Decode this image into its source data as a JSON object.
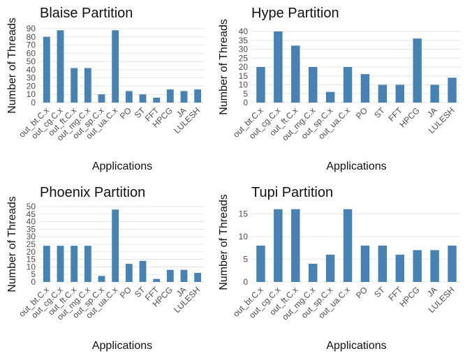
{
  "chart_data": [
    {
      "type": "bar",
      "title": "Blaise Partition",
      "xlabel": "Applications",
      "ylabel": "Number of Threads",
      "categories": [
        "out_bt.C.x",
        "out_cg.C.x",
        "out_ft.C.x",
        "out_mg.C.x",
        "out_sp.C.x",
        "out_ua.C.x",
        "PO",
        "ST",
        "FFT",
        "HPCG",
        "JA",
        "LULESH"
      ],
      "values": [
        80,
        88,
        42,
        42,
        10,
        88,
        14,
        10,
        6,
        16,
        14,
        16
      ],
      "yticks": [
        0,
        10,
        20,
        30,
        40,
        50,
        60,
        70,
        80,
        90
      ],
      "ylim": [
        0,
        90
      ],
      "grid": true,
      "bar_color": "#4682b4"
    },
    {
      "type": "bar",
      "title": "Hype Partition",
      "xlabel": "Applications",
      "ylabel": "Number of Threads",
      "categories": [
        "out_bt.C.x",
        "out_cg.C.x",
        "out_ft.C.x",
        "out_mg.C.x",
        "out_sp.C.x",
        "out_ua.C.x",
        "PO",
        "ST",
        "FFT",
        "HPCG",
        "JA",
        "LULESH"
      ],
      "values": [
        20,
        40,
        32,
        20,
        6,
        20,
        16,
        10,
        10,
        36,
        10,
        14
      ],
      "yticks": [
        0,
        5,
        10,
        15,
        20,
        25,
        30,
        35,
        40
      ],
      "ylim": [
        0,
        40
      ],
      "grid": true,
      "bar_color": "#4682b4"
    },
    {
      "type": "bar",
      "title": "Phoenix Partition",
      "xlabel": "Applications",
      "ylabel": "Number of Threads",
      "categories": [
        "out_bt.C.x",
        "out_cg.C.x",
        "out_ft.C.x",
        "out_mg.C.x",
        "out_sp.C.x",
        "out_ua.C.x",
        "PO",
        "ST",
        "FFT",
        "HPCG",
        "JA",
        "LULESH"
      ],
      "values": [
        24,
        24,
        24,
        24,
        4,
        48,
        12,
        14,
        2,
        8,
        8,
        6
      ],
      "yticks": [
        0,
        5,
        10,
        15,
        20,
        25,
        30,
        35,
        40,
        45,
        50
      ],
      "ylim": [
        0,
        50
      ],
      "grid": true,
      "bar_color": "#4682b4"
    },
    {
      "type": "bar",
      "title": "Tupi Partition",
      "xlabel": "Applications",
      "ylabel": "Number of Threads",
      "categories": [
        "out_bt.C.x",
        "out_cg.C.x",
        "out_ft.C.x",
        "out_mg.C.x",
        "out_sp.C.x",
        "out_ua.C.x",
        "PO",
        "ST",
        "FFT",
        "HPCG",
        "JA",
        "LULESH"
      ],
      "values": [
        8,
        16,
        16,
        4,
        6,
        16,
        8,
        8,
        6,
        7,
        7,
        8
      ],
      "yticks": [
        0,
        5,
        10,
        15
      ],
      "ylim": [
        0,
        17.5
      ],
      "grid": true,
      "bar_color": "#4682b4"
    }
  ]
}
